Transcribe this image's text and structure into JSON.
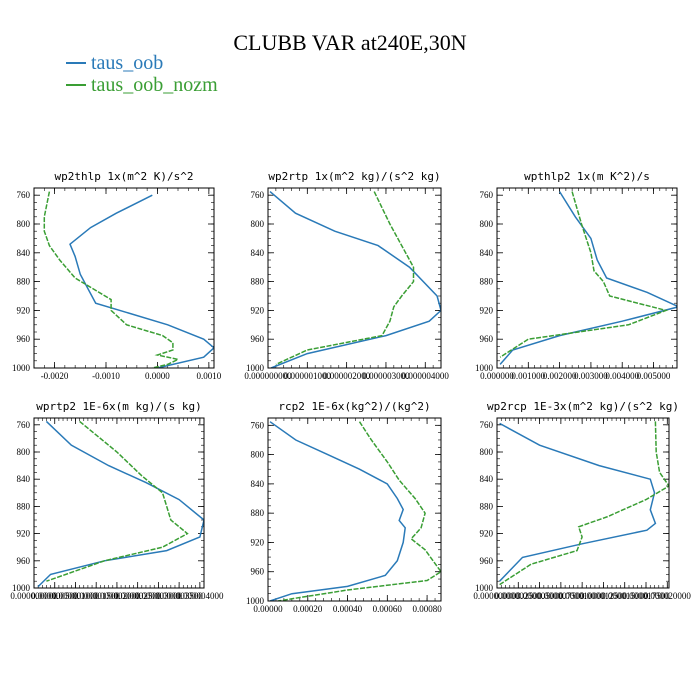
{
  "title": "CLUBB VAR at240E,30N",
  "legend": [
    {
      "name": "taus_oob",
      "color": "#2a7ab8"
    },
    {
      "name": "taus_oob_nozm",
      "color": "#3a9e34"
    }
  ],
  "chart_data": [
    {
      "type": "line",
      "title": "wp2thlp   1x(m^2 K)/s^2",
      "xlim": [
        -0.0024,
        0.0011
      ],
      "ylim": [
        1000,
        750
      ],
      "xticks": [
        "-0.0020",
        "-0.0010",
        "0.0000",
        "0.0010"
      ],
      "xtick_values": [
        -0.002,
        -0.001,
        0,
        0.001
      ],
      "yticks": [
        "760",
        "800",
        "840",
        "880",
        "920",
        "960",
        "1000"
      ],
      "series": [
        {
          "name": "taus_oob",
          "x": [
            -0.0001,
            -0.0008,
            -0.0013,
            -0.0017,
            -0.0016,
            -0.0015,
            -0.0012,
            0.0002,
            0.0009,
            0.0011,
            0.0009,
            0.0
          ],
          "y": [
            760,
            785,
            805,
            828,
            845,
            870,
            910,
            940,
            960,
            972,
            985,
            1000
          ]
        },
        {
          "name": "taus_oob_nozm",
          "x": [
            -0.0021,
            -0.0022,
            -0.0022,
            -0.0021,
            -0.0019,
            -0.0016,
            -0.0009,
            -0.0009,
            -0.0006,
            0.0001,
            0.0003,
            0.0003,
            0.0,
            0.0004,
            0.0002,
            -0.0001
          ],
          "y": [
            755,
            790,
            810,
            830,
            850,
            875,
            905,
            920,
            940,
            955,
            965,
            975,
            982,
            988,
            995,
            1000
          ]
        }
      ]
    },
    {
      "type": "line",
      "title": "wp2rtp   1x(m^2 kg)/(s^2 kg)",
      "xlim": [
        0,
        4.4e-06
      ],
      "ylim": [
        1000,
        750
      ],
      "xticks": [
        "0.000000000",
        "0.000001000",
        "0.000002000",
        "0.000003000",
        "0.000004000"
      ],
      "xtick_values": [
        0,
        1e-06,
        2e-06,
        3e-06,
        4e-06
      ],
      "yticks": [
        "760",
        "800",
        "840",
        "880",
        "920",
        "960",
        "1000"
      ],
      "series": [
        {
          "name": "taus_oob",
          "x": [
            5e-08,
            7e-07,
            1.7e-06,
            2.8e-06,
            3.6e-06,
            4.3e-06,
            4.4e-06,
            4.1e-06,
            3e-06,
            1e-06,
            8e-08
          ],
          "y": [
            755,
            785,
            810,
            830,
            860,
            900,
            920,
            935,
            955,
            980,
            1000
          ]
        },
        {
          "name": "taus_oob_nozm",
          "x": [
            2.7e-06,
            3.1e-06,
            3.4e-06,
            3.7e-06,
            3.7e-06,
            3.4e-06,
            3.2e-06,
            3.1e-06,
            2.9e-06,
            1e-06,
            2e-07
          ],
          "y": [
            755,
            800,
            830,
            860,
            880,
            900,
            915,
            935,
            955,
            975,
            995
          ]
        }
      ]
    },
    {
      "type": "line",
      "title": "wpthlp2   1x(m K^2)/s",
      "xlim": [
        0,
        0.00575
      ],
      "ylim": [
        1000,
        750
      ],
      "xticks": [
        "0.000000",
        "0.001000",
        "0.002000",
        "0.003000",
        "0.004000",
        "0.005000"
      ],
      "xtick_values": [
        0,
        0.001,
        0.002,
        0.003,
        0.004,
        0.005
      ],
      "yticks": [
        "760",
        "800",
        "840",
        "880",
        "920",
        "960",
        "1000"
      ],
      "series": [
        {
          "name": "taus_oob",
          "x": [
            0.002,
            0.0025,
            0.003,
            0.0032,
            0.0035,
            0.0048,
            0.0058,
            0.004,
            0.002,
            0.0005,
            0.0001
          ],
          "y": [
            755,
            790,
            820,
            850,
            875,
            895,
            915,
            935,
            955,
            975,
            995
          ]
        },
        {
          "name": "taus_oob_nozm",
          "x": [
            0.0024,
            0.0027,
            0.003,
            0.0031,
            0.0034,
            0.0036,
            0.0054,
            0.0042,
            0.001,
            0.0001
          ],
          "y": [
            755,
            800,
            840,
            865,
            880,
            900,
            920,
            940,
            960,
            985
          ]
        }
      ]
    },
    {
      "type": "line",
      "title": "wprtp2   1E-6x(m kg)/(s kg)",
      "xlim": [
        0,
        4.1e-06
      ],
      "ylim": [
        1000,
        750
      ],
      "xticks": [
        "0.000000000",
        "0.000000500",
        "0.000001000",
        "0.000001500",
        "0.000002000",
        "0.000002500",
        "0.000003000",
        "0.000003500",
        "0.000004000"
      ],
      "xtick_values": [
        0,
        5e-07,
        1e-06,
        1.5e-06,
        2e-06,
        2.5e-06,
        3e-06,
        3.5e-06,
        4e-06
      ],
      "yticks": [
        "760",
        "800",
        "840",
        "880",
        "920",
        "960",
        "1000"
      ],
      "series": [
        {
          "name": "taus_oob",
          "x": [
            3e-07,
            9e-07,
            1.8e-06,
            2.7e-06,
            3.5e-06,
            4.1e-06,
            4e-06,
            3.2e-06,
            1.7e-06,
            4e-07,
            1e-07
          ],
          "y": [
            755,
            790,
            820,
            845,
            870,
            900,
            925,
            945,
            960,
            980,
            998
          ]
        },
        {
          "name": "taus_oob_nozm",
          "x": [
            1.1e-06,
            2e-06,
            2.6e-06,
            3.1e-06,
            3.2e-06,
            3.3e-06,
            3.5e-06,
            3.7e-06,
            3.1e-06,
            1.7e-06,
            3e-07
          ],
          "y": [
            755,
            800,
            835,
            860,
            880,
            900,
            910,
            920,
            940,
            960,
            990
          ]
        }
      ]
    },
    {
      "type": "line",
      "title": "rcp2   1E-6x(kg^2)/(kg^2)",
      "xlim": [
        0,
        0.00087
      ],
      "ylim": [
        1000,
        750
      ],
      "xticks": [
        "0.00000",
        "0.00020",
        "0.00040",
        "0.00060",
        "0.00080"
      ],
      "xtick_values": [
        0,
        0.0002,
        0.0004,
        0.0006,
        0.0008
      ],
      "yticks": [
        "760",
        "800",
        "840",
        "880",
        "920",
        "960",
        "1000"
      ],
      "series": [
        {
          "name": "taus_oob",
          "x": [
            1e-05,
            0.00014,
            0.0003,
            0.00046,
            0.0006,
            0.00065,
            0.00068,
            0.00066,
            0.00069,
            0.00068,
            0.00065,
            0.00059,
            0.0004,
            0.00012,
            1e-05
          ],
          "y": [
            755,
            780,
            800,
            820,
            840,
            860,
            875,
            890,
            900,
            920,
            945,
            965,
            980,
            990,
            1000
          ]
        },
        {
          "name": "taus_oob_nozm",
          "x": [
            0.00046,
            0.00052,
            0.0006,
            0.00066,
            0.00074,
            0.00079,
            0.00077,
            0.00072,
            0.00079,
            0.00087,
            0.0008,
            0.0004,
            5e-05
          ],
          "y": [
            755,
            780,
            810,
            835,
            860,
            880,
            900,
            915,
            930,
            960,
            972,
            985,
            1000
          ]
        }
      ]
    },
    {
      "type": "line",
      "title": "wp2rcp   1E-3x(m^2 kg)/(s^2 kg)",
      "xlim": [
        0,
        2.02e-05
      ],
      "ylim": [
        1000,
        750
      ],
      "xticks": [
        "0.000000000",
        "0.000002500",
        "0.000005000",
        "0.000007500",
        "0.000010000",
        "0.000012500",
        "0.000015000",
        "0.000017500",
        "0.000020000"
      ],
      "xtick_values": [
        0,
        2.5e-06,
        5e-06,
        7.5e-06,
        1e-05,
        1.25e-05,
        1.5e-05,
        1.75e-05,
        2e-05
      ],
      "yticks": [
        "760",
        "800",
        "840",
        "880",
        "920",
        "960",
        "1000"
      ],
      "series": [
        {
          "name": "taus_oob",
          "x": [
            3e-07,
            5e-06,
            1.2e-05,
            1.8e-05,
            1.85e-05,
            1.8e-05,
            1.86e-05,
            1.76e-05,
            1e-05,
            3e-06,
            3e-07
          ],
          "y": [
            758,
            790,
            820,
            840,
            860,
            885,
            905,
            915,
            935,
            955,
            990
          ]
        },
        {
          "name": "taus_oob_nozm",
          "x": [
            1.86e-05,
            1.87e-05,
            1.91e-05,
            2.02e-05,
            1.75e-05,
            1.3e-05,
            9.6e-06,
            1e-05,
            9.4e-06,
            4e-06,
            3e-07
          ],
          "y": [
            755,
            800,
            830,
            850,
            870,
            895,
            910,
            925,
            945,
            965,
            995
          ]
        }
      ]
    }
  ]
}
